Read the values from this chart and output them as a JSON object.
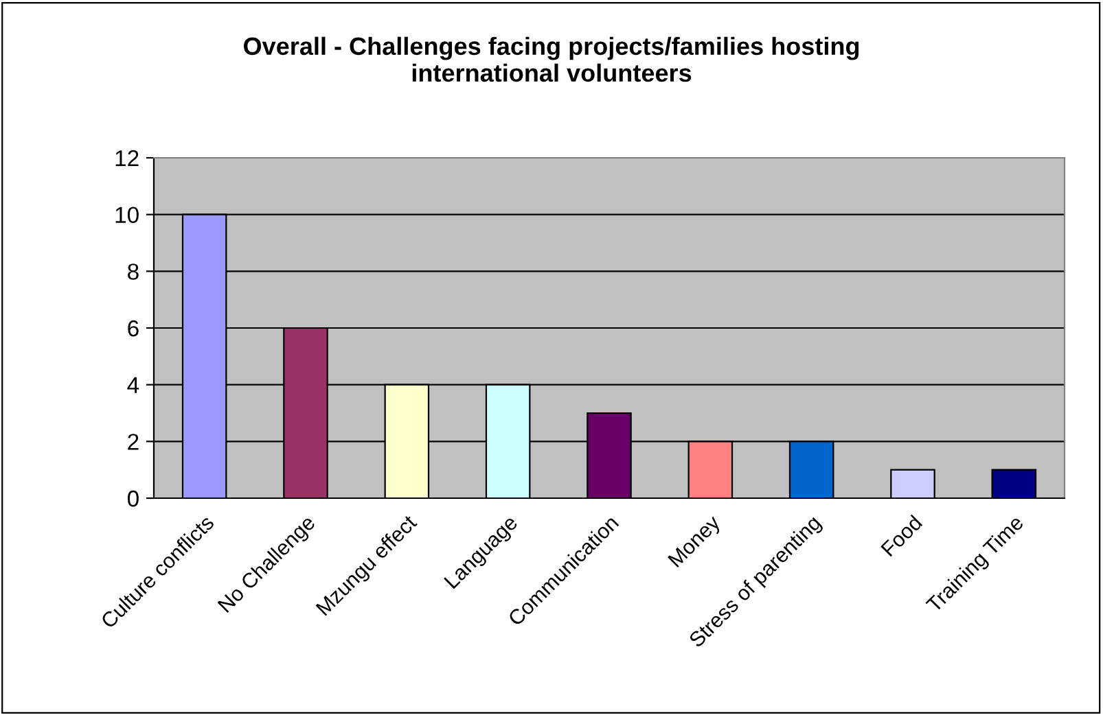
{
  "chart_data": {
    "type": "bar",
    "title": "Overall - Challenges facing projects/families hosting\ninternational volunteers",
    "categories": [
      "Culture conflicts",
      "No Challenge",
      "Mzungu effect",
      "Language",
      "Communication",
      "Money",
      "Stress of parenting",
      "Food",
      "Training Time"
    ],
    "values": [
      10,
      6,
      4,
      4,
      3,
      2,
      2,
      1,
      1
    ],
    "colors": [
      "#9999ff",
      "#993366",
      "#ffffcc",
      "#ccffff",
      "#660066",
      "#ff8080",
      "#0066cc",
      "#ccccff",
      "#000080"
    ],
    "ylim": [
      0,
      12
    ],
    "yticks": [
      0,
      2,
      4,
      6,
      8,
      10,
      12
    ],
    "grid": "y",
    "legend": false
  }
}
